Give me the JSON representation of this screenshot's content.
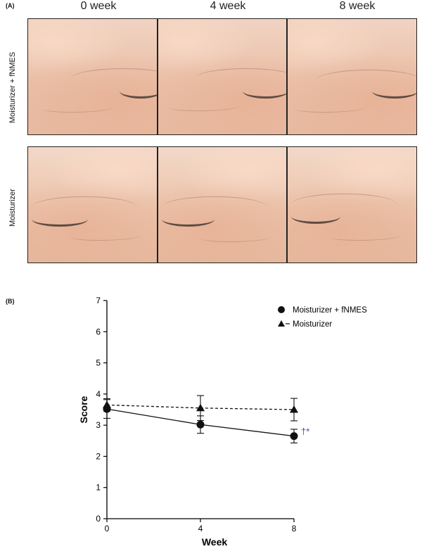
{
  "panel_a": {
    "label": "(A)",
    "columns": [
      "0 week",
      "4 week",
      "8 week"
    ],
    "rows": [
      "Moisturizer + fNMES",
      "Moisturizer"
    ]
  },
  "panel_b": {
    "label": "(B)",
    "significance": "†*"
  },
  "chart_data": {
    "type": "line",
    "x": [
      0,
      4,
      8
    ],
    "xlabel": "Week",
    "ylabel": "Score",
    "xticks": [
      0,
      4,
      8
    ],
    "yticks": [
      0,
      1,
      2,
      3,
      4,
      5,
      6,
      7
    ],
    "ylim": [
      0,
      7
    ],
    "xlim": [
      0,
      8
    ],
    "legend_position": "top-right",
    "grid": false,
    "series": [
      {
        "name": "Moisturizer + fNMES",
        "marker": "circle",
        "line_style": "solid",
        "values": [
          3.52,
          3.02,
          2.65
        ],
        "error": [
          0.3,
          0.28,
          0.22
        ]
      },
      {
        "name": "Moisturizer",
        "marker": "triangle",
        "line_style": "dashed",
        "values": [
          3.65,
          3.55,
          3.5
        ],
        "error": [
          0.2,
          0.4,
          0.36
        ]
      }
    ]
  }
}
